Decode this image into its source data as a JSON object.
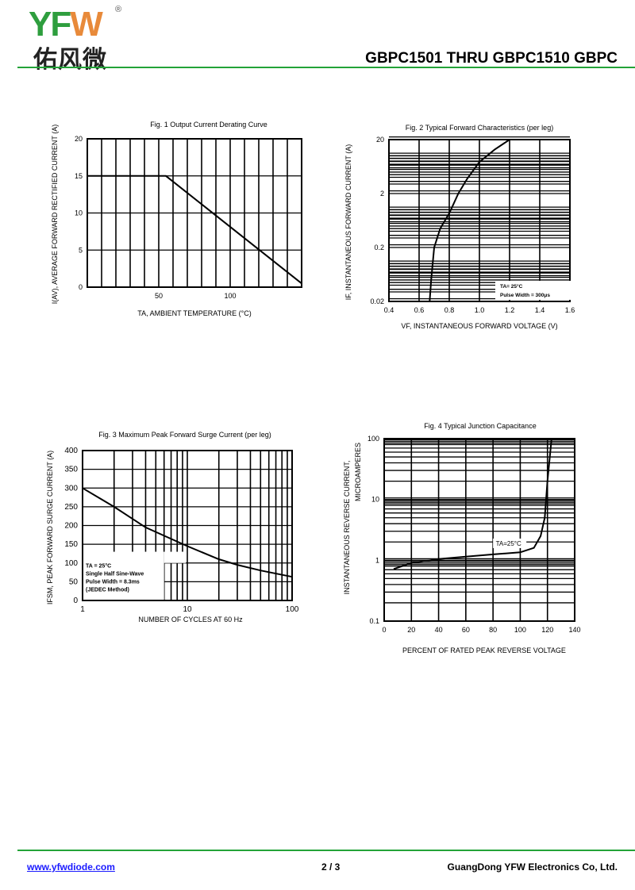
{
  "header": {
    "logo_text": "YFW",
    "logo_chinese": "佑风微",
    "doc_title": "GBPC1501 THRU GBPC1510  GBPC",
    "colors": {
      "rule": "#23a338",
      "logo_green": "#2e9e3e",
      "logo_orange": "#e88a3a"
    }
  },
  "footer": {
    "website": "www.yfwdiode.com",
    "page": "2 / 3",
    "company": "GuangDong YFW Electronics Co, Ltd."
  },
  "chart_data": [
    {
      "type": "line",
      "title": "Fig. 1  Output Current Derating Curve",
      "xlabel": "TA, AMBIENT TEMPERATURE (°C)",
      "ylabel": "I(AV), AVERAGE FORWARD RECTIFIED CURRENT (A)",
      "xscale": "linear",
      "yscale": "linear",
      "xlim": [
        0,
        150
      ],
      "ylim": [
        0,
        20
      ],
      "xticks": [
        {
          "v": 50,
          "label": "50"
        },
        {
          "v": 100,
          "label": "100"
        }
      ],
      "yticks": [
        {
          "v": 0,
          "label": "0"
        },
        {
          "v": 5,
          "label": "5"
        },
        {
          "v": 10,
          "label": "10"
        },
        {
          "v": 15,
          "label": "15"
        },
        {
          "v": 20,
          "label": "20"
        }
      ],
      "grid": true,
      "series": [
        {
          "name": "derating",
          "x": [
            0,
            55,
            150
          ],
          "y": [
            15,
            15,
            0.5
          ]
        }
      ],
      "annotations": []
    },
    {
      "type": "line",
      "title": "Fig. 2 Typical Forward Characteristics (per leg)",
      "xlabel": "VF, INSTANTANEOUS FORWARD VOLTAGE (V)",
      "ylabel": "IF, INSTANTANEOUS FORWARD CURRENT (A)",
      "xscale": "linear",
      "yscale": "log",
      "xlim": [
        0.4,
        1.6
      ],
      "ylim": [
        0.02,
        20
      ],
      "xticks": [
        {
          "v": 0.4,
          "label": "0.4"
        },
        {
          "v": 0.6,
          "label": "0.6"
        },
        {
          "v": 0.8,
          "label": "0.8"
        },
        {
          "v": 1.0,
          "label": "1.0"
        },
        {
          "v": 1.2,
          "label": "1.2"
        },
        {
          "v": 1.4,
          "label": "1.4"
        },
        {
          "v": 1.6,
          "label": "1.6"
        }
      ],
      "yticks": [
        {
          "v": 0.02,
          "label": "0.02"
        },
        {
          "v": 0.2,
          "label": "0.2"
        },
        {
          "v": 2,
          "label": "2"
        },
        {
          "v": 20,
          "label": "20"
        }
      ],
      "grid": true,
      "series": [
        {
          "name": "forward",
          "x": [
            0.67,
            0.68,
            0.7,
            0.74,
            0.8,
            0.86,
            0.92,
            1.0,
            1.1,
            1.2
          ],
          "y": [
            0.02,
            0.05,
            0.2,
            0.45,
            0.86,
            2,
            3.8,
            7.7,
            13,
            20
          ]
        }
      ],
      "annotations": [
        "TA= 25°C",
        "Pulse Width = 300μs"
      ]
    },
    {
      "type": "line",
      "title": "Fig. 3  Maximum Peak Forward Surge Current (per leg)",
      "xlabel": "NUMBER OF CYCLES AT 60 Hz",
      "ylabel": "IFSM, PEAK FORWARD SURGE CURRENT (A)",
      "xscale": "log",
      "yscale": "linear",
      "xlim": [
        1,
        100
      ],
      "ylim": [
        0,
        400
      ],
      "xticks": [
        {
          "v": 1,
          "label": "1"
        },
        {
          "v": 10,
          "label": "10"
        },
        {
          "v": 100,
          "label": "100"
        }
      ],
      "yticks": [
        {
          "v": 0,
          "label": "0"
        },
        {
          "v": 50,
          "label": "50"
        },
        {
          "v": 100,
          "label": "100"
        },
        {
          "v": 150,
          "label": "150"
        },
        {
          "v": 200,
          "label": "200"
        },
        {
          "v": 250,
          "label": "250"
        },
        {
          "v": 300,
          "label": "300"
        },
        {
          "v": 350,
          "label": "350"
        },
        {
          "v": 400,
          "label": "400"
        }
      ],
      "grid": true,
      "series": [
        {
          "name": "surge",
          "x": [
            1,
            2,
            4,
            10,
            20,
            30,
            50,
            100
          ],
          "y": [
            300,
            250,
            195,
            145,
            110,
            95,
            80,
            63
          ]
        }
      ],
      "annotations": [
        "TA = 25°C",
        "Single Half Sine-Wave",
        "Pulse Width = 8.3ms",
        "(JEDEC Method)"
      ]
    },
    {
      "type": "line",
      "title": "Fig. 4   Typical Junction Capacitance",
      "xlabel": "PERCENT OF RATED PEAK REVERSE VOLTAGE",
      "ylabel": "INSTANTANEOUS  REVERSE  CURRENT,",
      "ylabel2": "MICROAMPERES",
      "xscale": "linear",
      "yscale": "log",
      "xlim": [
        0,
        140
      ],
      "ylim": [
        0.1,
        100
      ],
      "xticks": [
        {
          "v": 0,
          "label": "0"
        },
        {
          "v": 20,
          "label": "20"
        },
        {
          "v": 40,
          "label": "40"
        },
        {
          "v": 60,
          "label": "60"
        },
        {
          "v": 80,
          "label": "80"
        },
        {
          "v": 100,
          "label": "100"
        },
        {
          "v": 120,
          "label": "120"
        },
        {
          "v": 140,
          "label": "140"
        }
      ],
      "yticks": [
        {
          "v": 0.1,
          "label": "0.1"
        },
        {
          "v": 1,
          "label": "1"
        },
        {
          "v": 10,
          "label": "10"
        },
        {
          "v": 100,
          "label": "100"
        }
      ],
      "grid": true,
      "series": [
        {
          "name": "reverse",
          "x": [
            7,
            20,
            40,
            60,
            80,
            100,
            110,
            115,
            118,
            120,
            123
          ],
          "y": [
            0.72,
            0.9,
            1.05,
            1.15,
            1.25,
            1.35,
            1.6,
            2.5,
            5,
            20,
            100
          ]
        }
      ],
      "annotations": [
        "TA=25°C"
      ]
    }
  ]
}
